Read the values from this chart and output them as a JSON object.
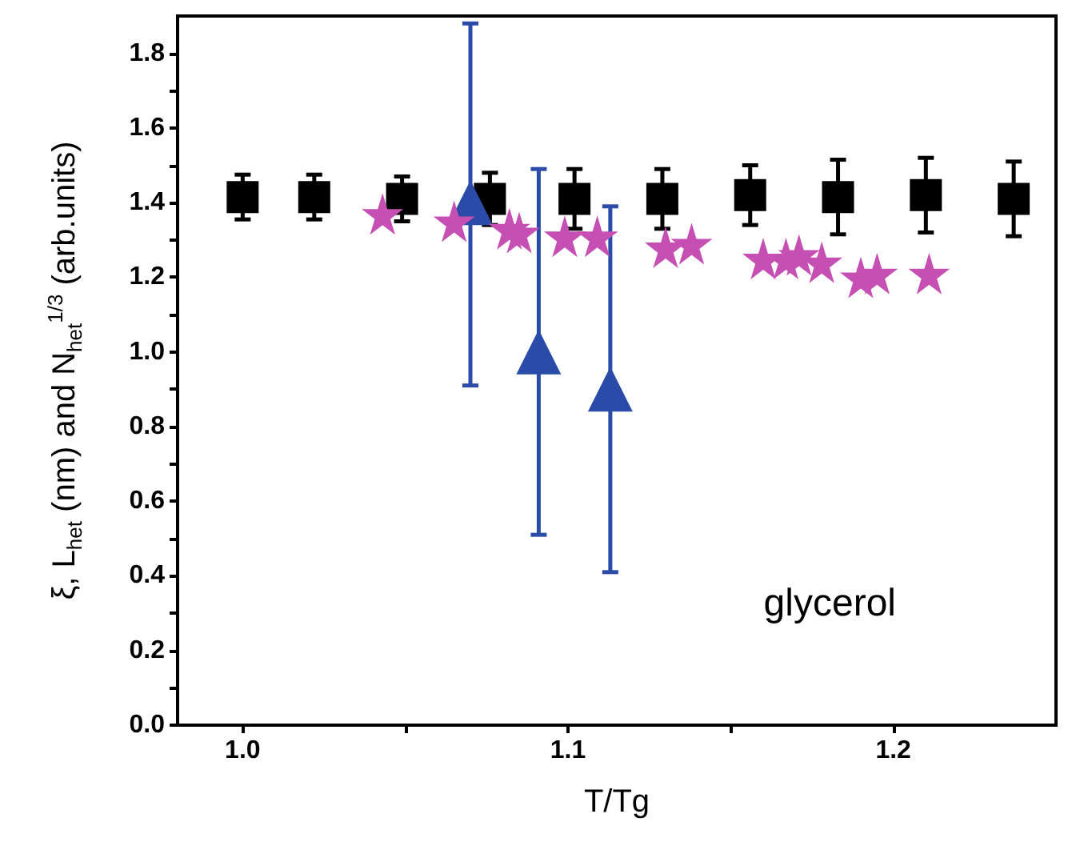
{
  "chart_data": {
    "type": "scatter",
    "xlabel": "T/Tg",
    "ylabel": "ξ, L$_{het}$ (nm) and N$_{het}$$^{1/3}$ (arb.units)",
    "xlim": [
      0.98,
      1.25
    ],
    "xticks": [
      {
        "value": 1.0,
        "label": "1.0"
      },
      {
        "value": 1.05,
        "label": null
      },
      {
        "value": 1.1,
        "label": "1.1"
      },
      {
        "value": 1.15,
        "label": null
      },
      {
        "value": 1.2,
        "label": "1.2"
      }
    ],
    "ylim": [
      0,
      1.9
    ],
    "yticks": [
      {
        "value": 0,
        "label": "0.0"
      },
      {
        "value": 0.1,
        "label": null
      },
      {
        "value": 0.2,
        "label": "0.2"
      },
      {
        "value": 0.3,
        "label": null
      },
      {
        "value": 0.4,
        "label": "0.4"
      },
      {
        "value": 0.5,
        "label": null
      },
      {
        "value": 0.6,
        "label": "0.6"
      },
      {
        "value": 0.7,
        "label": null
      },
      {
        "value": 0.8,
        "label": "0.8"
      },
      {
        "value": 0.9,
        "label": null
      },
      {
        "value": 1.0,
        "label": "1.0"
      },
      {
        "value": 1.1,
        "label": null
      },
      {
        "value": 1.2,
        "label": "1.2"
      },
      {
        "value": 1.3,
        "label": null
      },
      {
        "value": 1.4,
        "label": "1.4"
      },
      {
        "value": 1.5,
        "label": null
      },
      {
        "value": 1.6,
        "label": "1.6"
      },
      {
        "value": 1.7,
        "label": null
      },
      {
        "value": 1.8,
        "label": "1.8"
      }
    ],
    "grid": false,
    "annotations": [
      "glycerol"
    ],
    "series": [
      {
        "color": "#000000",
        "marker": "square",
        "x": [
          1.0,
          1.022,
          1.049,
          1.076,
          1.102,
          1.129,
          1.156,
          1.183,
          1.21,
          1.237
        ],
        "values": [
          1.415,
          1.415,
          1.41,
          1.41,
          1.41,
          1.41,
          1.42,
          1.415,
          1.42,
          1.41
        ],
        "errors": [
          0.06,
          0.06,
          0.06,
          0.07,
          0.08,
          0.08,
          0.08,
          0.1,
          0.1,
          0.1
        ]
      },
      {
        "color": "#c64fb4",
        "marker": "star",
        "x": [
          1.043,
          1.065,
          1.082,
          1.085,
          1.099,
          1.109,
          1.13,
          1.138,
          1.16,
          1.167,
          1.171,
          1.178,
          1.19,
          1.195,
          1.211
        ],
        "values": [
          1.37,
          1.35,
          1.33,
          1.32,
          1.31,
          1.31,
          1.28,
          1.29,
          1.25,
          1.25,
          1.26,
          1.24,
          1.2,
          1.21,
          1.21
        ]
      },
      {
        "color": "#2b4ba8",
        "marker": "triangle",
        "x": [
          1.07,
          1.091,
          1.113
        ],
        "values": [
          1.4,
          1.0,
          0.9
        ],
        "errors": [
          [
            0.91,
            1.88
          ],
          [
            0.51,
            1.49
          ],
          [
            0.41,
            1.39
          ]
        ]
      }
    ]
  }
}
